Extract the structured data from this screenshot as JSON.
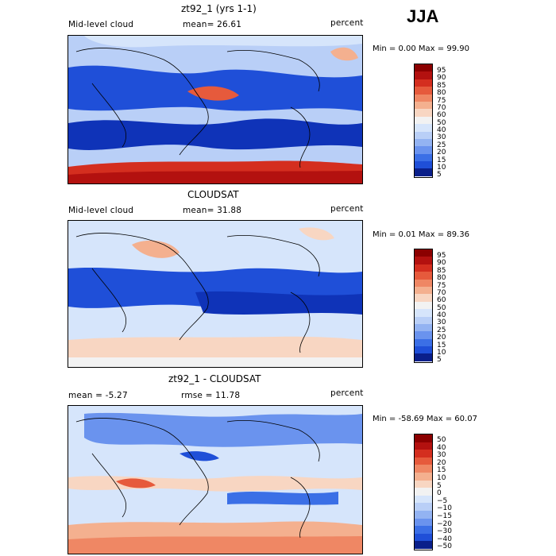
{
  "season": "JJA",
  "colors": {
    "seq": [
      "#0a1f8a",
      "#0f33b8",
      "#1f4fd8",
      "#3b6fe6",
      "#6a93ee",
      "#93b3f2",
      "#b9cff7",
      "#d6e5fb",
      "#f2f2f2",
      "#f8d6c2",
      "#f4b08f",
      "#ef8764",
      "#e65a3c",
      "#d42e1f",
      "#b3110f",
      "#8b0000"
    ],
    "diff": [
      "#0a1f8a",
      "#0f33b8",
      "#1f4fd8",
      "#3b6fe6",
      "#6a93ee",
      "#93b3f2",
      "#b9cff7",
      "#d6e5fb",
      "#f2f2f2",
      "#f8d6c2",
      "#f4b08f",
      "#ef8764",
      "#e65a3c",
      "#d42e1f",
      "#b3110f",
      "#8b0000"
    ]
  },
  "panels": [
    {
      "title": "zt92_1 (yrs 1-1)",
      "left": "Mid-level cloud",
      "center": "mean=  26.61",
      "right": "percent",
      "stats": "Min =   0.00  Max =  99.90",
      "ticks": [
        "95",
        "90",
        "85",
        "80",
        "75",
        "70",
        "60",
        "50",
        "40",
        "30",
        "25",
        "20",
        "15",
        "10",
        "5"
      ]
    },
    {
      "title": "CLOUDSAT",
      "left": "Mid-level cloud",
      "center": "mean=  31.88",
      "right": "percent",
      "stats": "Min =   0.01  Max =  89.36",
      "ticks": [
        "95",
        "90",
        "85",
        "80",
        "75",
        "70",
        "60",
        "50",
        "40",
        "30",
        "25",
        "20",
        "15",
        "10",
        "5"
      ]
    },
    {
      "title": "zt92_1 - CLOUDSAT",
      "left": "mean =   -5.27",
      "center": "rmse =  11.78",
      "right": "percent",
      "stats": "Min = -58.69  Max =  60.07",
      "ticks": [
        "50",
        "40",
        "30",
        "20",
        "15",
        "10",
        "5",
        "0",
        "−5",
        "−10",
        "−15",
        "−20",
        "−30",
        "−40",
        "−50"
      ]
    }
  ]
}
